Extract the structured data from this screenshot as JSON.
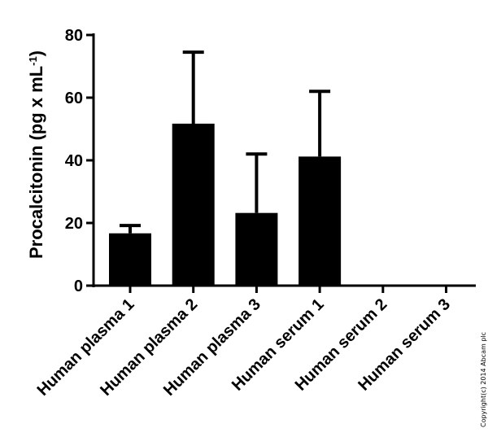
{
  "chart_data": {
    "type": "bar",
    "categories": [
      "Human plasma 1",
      "Human plasma 2",
      "Human plasma 3",
      "Human serum 1",
      "Human serum 2",
      "Human serum 3"
    ],
    "values": [
      16.7,
      51.7,
      23.2,
      41.2,
      0,
      0
    ],
    "error_upper": [
      19.2,
      74.5,
      42.0,
      62.0,
      0,
      0
    ],
    "ylabel_main": "Procalcitonin (pg x mL",
    "ylabel_sup": "-1",
    "ylabel_close": ")",
    "ylim": [
      0,
      80
    ],
    "yticks": [
      "0",
      "20",
      "40",
      "60",
      "80"
    ],
    "bar_color": "#000000",
    "grid": false
  },
  "copyright": "Copyright(c) 2014 Abcam plc"
}
